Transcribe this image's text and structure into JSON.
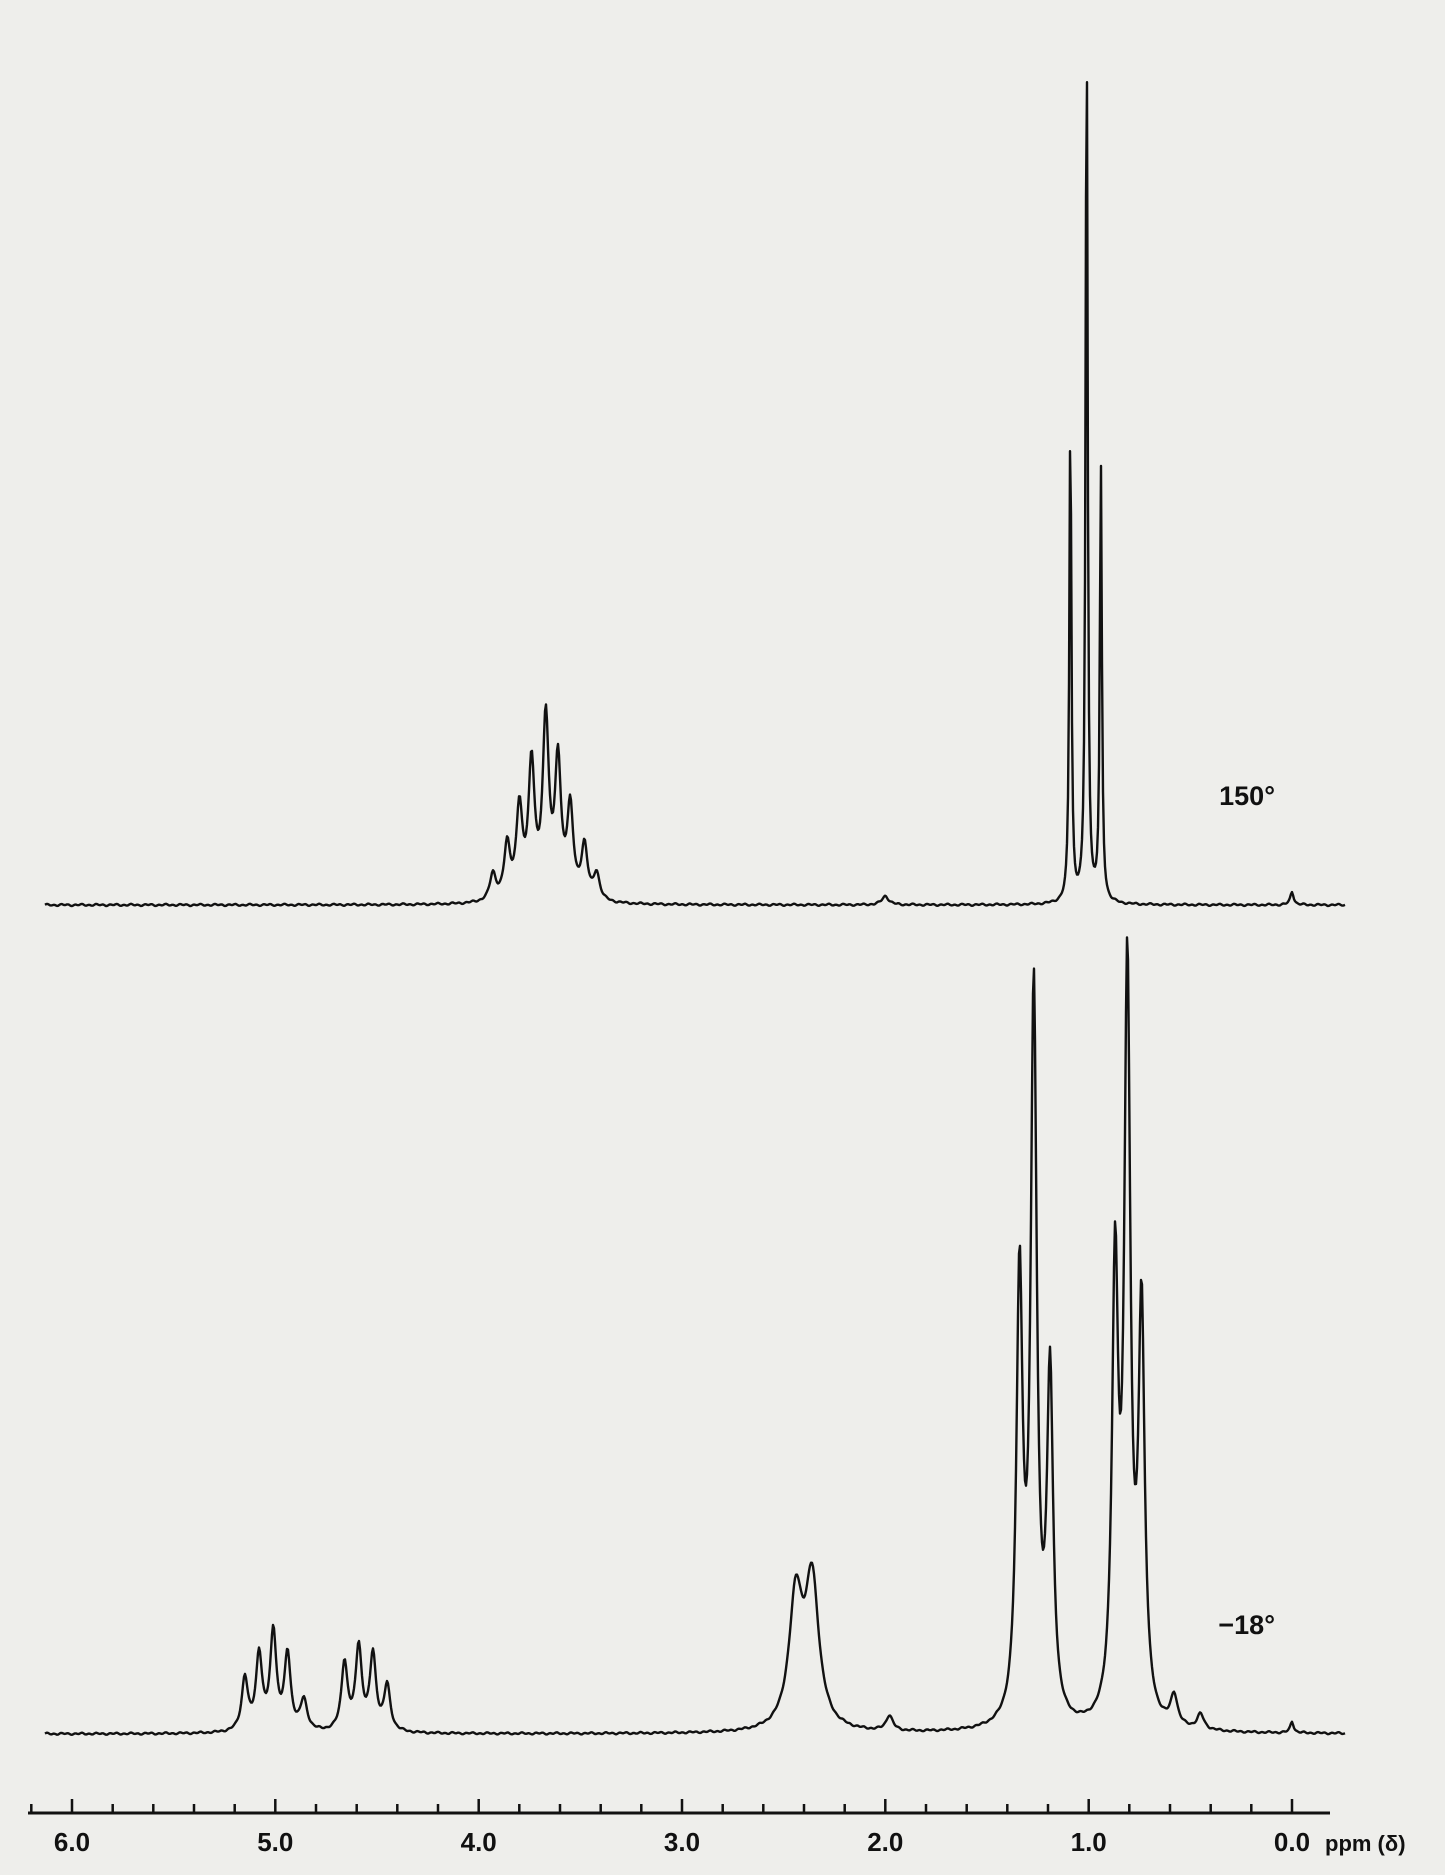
{
  "chart_data": {
    "type": "line",
    "title": "",
    "xlabel": "ppm (δ)",
    "ylabel": "",
    "xlim": [
      6.2,
      -0.2
    ],
    "x_reversed": true,
    "x_ticks": [
      6.0,
      5.0,
      4.0,
      3.0,
      2.0,
      1.0,
      0.0
    ],
    "x_tick_labels": [
      "6.0",
      "5.0",
      "4.0",
      "3.0",
      "2.0",
      "1.0",
      "0.0"
    ],
    "grid": false,
    "series": [
      {
        "name": "150°",
        "label_position": "right",
        "baseline_ppm_range": [
          6.25,
          -0.3
        ],
        "peaks": [
          {
            "ppm": 3.93,
            "height": 0.03,
            "width": 0.018
          },
          {
            "ppm": 3.86,
            "height": 0.06,
            "width": 0.018
          },
          {
            "ppm": 3.8,
            "height": 0.1,
            "width": 0.018
          },
          {
            "ppm": 3.74,
            "height": 0.15,
            "width": 0.018
          },
          {
            "ppm": 3.67,
            "height": 0.2,
            "width": 0.018
          },
          {
            "ppm": 3.61,
            "height": 0.15,
            "width": 0.018
          },
          {
            "ppm": 3.55,
            "height": 0.1,
            "width": 0.018
          },
          {
            "ppm": 3.48,
            "height": 0.06,
            "width": 0.018
          },
          {
            "ppm": 3.42,
            "height": 0.03,
            "width": 0.018
          },
          {
            "ppm": 2.0,
            "height": 0.01,
            "width": 0.02
          },
          {
            "ppm": 1.09,
            "height": 0.55,
            "width": 0.006
          },
          {
            "ppm": 1.01,
            "height": 1.0,
            "width": 0.006
          },
          {
            "ppm": 0.94,
            "height": 0.49,
            "width": 0.006
          },
          {
            "ppm": 0.0,
            "height": 0.015,
            "width": 0.01
          }
        ]
      },
      {
        "name": "−18°",
        "label_position": "right",
        "baseline_ppm_range": [
          6.25,
          -0.3
        ],
        "peaks": [
          {
            "ppm": 5.15,
            "height": 0.07,
            "width": 0.018
          },
          {
            "ppm": 5.08,
            "height": 0.1,
            "width": 0.018
          },
          {
            "ppm": 5.01,
            "height": 0.13,
            "width": 0.018
          },
          {
            "ppm": 4.94,
            "height": 0.1,
            "width": 0.018
          },
          {
            "ppm": 4.86,
            "height": 0.04,
            "width": 0.02
          },
          {
            "ppm": 4.66,
            "height": 0.09,
            "width": 0.018
          },
          {
            "ppm": 4.59,
            "height": 0.11,
            "width": 0.018
          },
          {
            "ppm": 4.52,
            "height": 0.1,
            "width": 0.018
          },
          {
            "ppm": 4.45,
            "height": 0.06,
            "width": 0.018
          },
          {
            "ppm": 2.44,
            "height": 0.17,
            "width": 0.04
          },
          {
            "ppm": 2.36,
            "height": 0.19,
            "width": 0.04
          },
          {
            "ppm": 1.98,
            "height": 0.02,
            "width": 0.02
          },
          {
            "ppm": 1.34,
            "height": 0.58,
            "width": 0.018
          },
          {
            "ppm": 1.27,
            "height": 0.95,
            "width": 0.018
          },
          {
            "ppm": 1.19,
            "height": 0.45,
            "width": 0.018
          },
          {
            "ppm": 0.87,
            "height": 0.58,
            "width": 0.018
          },
          {
            "ppm": 0.81,
            "height": 0.97,
            "width": 0.018
          },
          {
            "ppm": 0.74,
            "height": 0.53,
            "width": 0.018
          },
          {
            "ppm": 0.58,
            "height": 0.04,
            "width": 0.02
          },
          {
            "ppm": 0.45,
            "height": 0.02,
            "width": 0.02
          },
          {
            "ppm": 0.0,
            "height": 0.015,
            "width": 0.01
          }
        ]
      }
    ]
  }
}
